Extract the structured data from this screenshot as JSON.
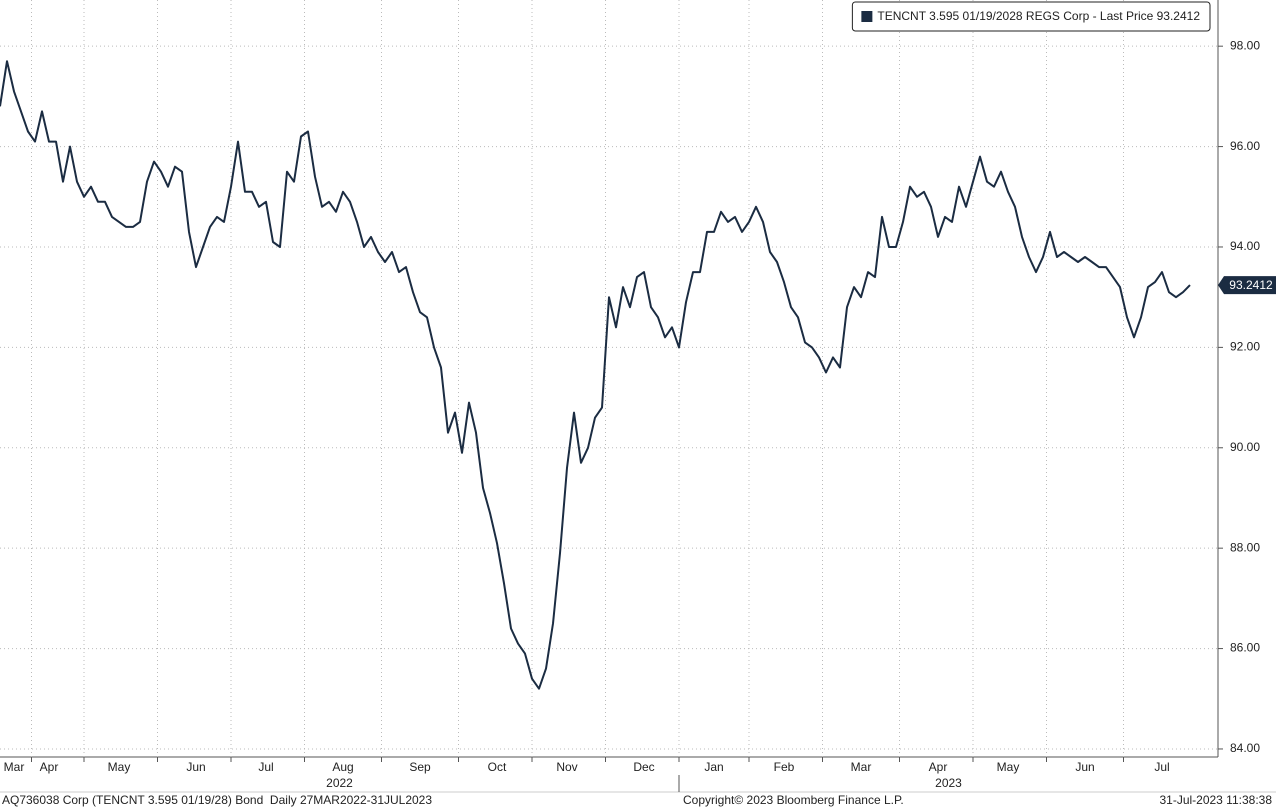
{
  "chart_data": {
    "type": "line",
    "series": [
      {
        "name": "TENCNT 3.595 01/19/2028 REGS Corp - Last Price 93.2412",
        "color": "#1b2c42",
        "values": [
          96.8,
          97.7,
          97.1,
          96.7,
          96.3,
          96.1,
          96.7,
          96.1,
          96.1,
          95.3,
          96.0,
          95.3,
          95.0,
          95.2,
          94.9,
          94.9,
          94.6,
          94.5,
          94.4,
          94.4,
          94.5,
          95.3,
          95.7,
          95.5,
          95.2,
          95.6,
          95.5,
          94.3,
          93.6,
          94.0,
          94.4,
          94.6,
          94.5,
          95.2,
          96.1,
          95.1,
          95.1,
          94.8,
          94.9,
          94.1,
          94.0,
          95.5,
          95.3,
          96.2,
          96.3,
          95.4,
          94.8,
          94.9,
          94.7,
          95.1,
          94.9,
          94.5,
          94.0,
          94.2,
          93.9,
          93.7,
          93.9,
          93.5,
          93.6,
          93.1,
          92.7,
          92.6,
          92.0,
          91.6,
          90.3,
          90.7,
          89.9,
          90.9,
          90.3,
          89.2,
          88.7,
          88.1,
          87.3,
          86.4,
          86.1,
          85.9,
          85.4,
          85.2,
          85.6,
          86.5,
          87.9,
          89.6,
          90.7,
          89.7,
          90.0,
          90.6,
          90.8,
          93.0,
          92.4,
          93.2,
          92.8,
          93.4,
          93.5,
          92.8,
          92.6,
          92.2,
          92.4,
          92.0,
          92.9,
          93.5,
          93.5,
          94.3,
          94.3,
          94.7,
          94.5,
          94.6,
          94.3,
          94.5,
          94.8,
          94.5,
          93.9,
          93.7,
          93.3,
          92.8,
          92.6,
          92.1,
          92.0,
          91.8,
          91.5,
          91.8,
          91.6,
          92.8,
          93.2,
          93.0,
          93.5,
          93.4,
          94.6,
          94.0,
          94.0,
          94.5,
          95.2,
          95.0,
          95.1,
          94.8,
          94.2,
          94.6,
          94.5,
          95.2,
          94.8,
          95.3,
          95.8,
          95.3,
          95.2,
          95.5,
          95.1,
          94.8,
          94.2,
          93.8,
          93.5,
          93.8,
          94.3,
          93.8,
          93.9,
          93.8,
          93.7,
          93.8,
          93.7,
          93.6,
          93.6,
          93.4,
          93.2,
          92.6,
          92.2,
          92.6,
          93.2,
          93.3,
          93.5,
          93.1,
          93.0,
          93.1,
          93.2412
        ]
      }
    ],
    "categories": [
      null,
      null,
      "Mar",
      null,
      null,
      null,
      null,
      "Apr",
      null,
      null,
      null,
      null,
      null,
      null,
      null,
      null,
      null,
      "May",
      null,
      null,
      null,
      null,
      null,
      null,
      null,
      null,
      null,
      null,
      "Jun",
      null,
      null,
      null,
      null,
      null,
      null,
      null,
      null,
      null,
      "Jul",
      null,
      null,
      null,
      null,
      null,
      null,
      null,
      null,
      null,
      null,
      "Aug",
      null,
      null,
      null,
      null,
      null,
      null,
      null,
      null,
      null,
      null,
      "Sep",
      null,
      null,
      null,
      null,
      null,
      null,
      null,
      null,
      null,
      null,
      "Oct",
      null,
      null,
      null,
      null,
      null,
      null,
      null,
      null,
      null,
      "Nov",
      null,
      null,
      null,
      null,
      null,
      null,
      null,
      null,
      null,
      null,
      "Dec",
      null,
      null,
      null,
      null,
      null,
      null,
      null,
      null,
      null,
      "Jan",
      null,
      null,
      null,
      null,
      null,
      null,
      null,
      null,
      null,
      "Feb",
      null,
      null,
      null,
      null,
      null,
      null,
      null,
      null,
      null,
      null,
      "Mar",
      null,
      null,
      null,
      null,
      null,
      null,
      null,
      null,
      null,
      null,
      "Apr",
      null,
      null,
      null,
      null,
      null,
      null,
      null,
      null,
      null,
      "May",
      null,
      null,
      null,
      null,
      null,
      null,
      null,
      null,
      null,
      null,
      "Jun",
      null,
      null,
      null,
      null,
      null,
      null,
      null,
      null,
      null,
      null,
      "Jul",
      null,
      null,
      null,
      null
    ],
    "x_group_labels": [
      "2022",
      "2023"
    ],
    "ylim": [
      83.84,
      98.92
    ],
    "yticks": [
      {
        "value": 84,
        "label": "84.00"
      },
      {
        "value": 86,
        "label": "86.00"
      },
      {
        "value": 88,
        "label": "88.00"
      },
      {
        "value": 90,
        "label": "90.00"
      },
      {
        "value": 92,
        "label": "92.00"
      },
      {
        "value": 94,
        "label": "94.00"
      },
      {
        "value": 96,
        "label": "96.00"
      },
      {
        "value": 98,
        "label": "98.00"
      }
    ],
    "grid": true,
    "legend": "top-right"
  },
  "footer": {
    "left": "AQ736038 Corp (TENCNT 3.595 01/19/28) Bond  Daily 27MAR2022-31JUL2023",
    "center": "Copyright© 2023 Bloomberg Finance L.P.",
    "right": "31-Jul-2023 11:38:38"
  }
}
